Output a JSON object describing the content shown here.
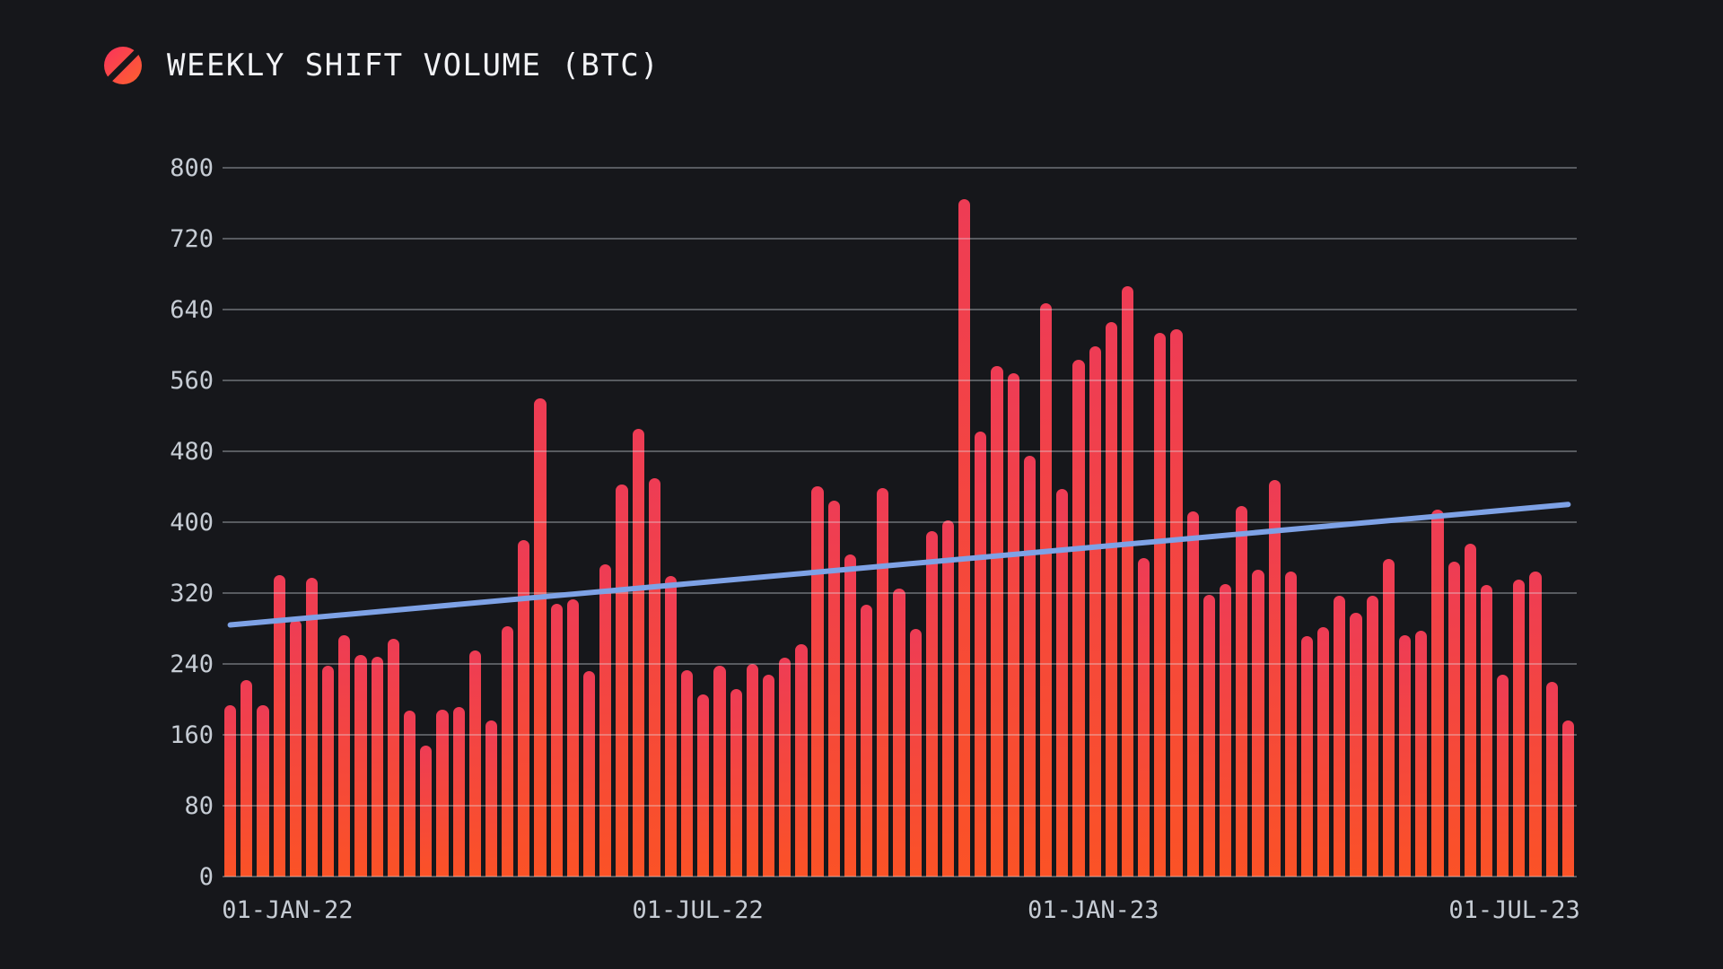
{
  "page": {
    "background": "#16171b"
  },
  "header": {
    "title": "WEEKLY SHIFT VOLUME (BTC)",
    "logo_name": "sideshift-slashed-circle-logo",
    "logo_color_from": "#fa3a55",
    "logo_color_to": "#fd5c33"
  },
  "chart_data": {
    "type": "bar",
    "title": "WEEKLY SHIFT VOLUME (BTC)",
    "unit": "BTC",
    "frequency": "weekly",
    "ylim": [
      0,
      800
    ],
    "y_ticks": [
      0,
      80,
      160,
      240,
      320,
      400,
      480,
      560,
      640,
      720,
      800
    ],
    "x_tick_labels": [
      "01-JAN-22",
      "01-JUL-22",
      "01-JAN-23",
      "01-JUL-23"
    ],
    "x_tick_positions": [
      0.048,
      0.351,
      0.643,
      0.954
    ],
    "grid": true,
    "legend_position": "none",
    "bar_color_top": "#ee3c55",
    "bar_color_bottom": "#fb5226",
    "background_color": "#16171b",
    "gridline_color": "rgba(226,231,238,0.33)",
    "tick_label_color": "#c6ccd4",
    "title_color": "#f2f3f6",
    "trendline": {
      "type": "linear",
      "start_value": 284,
      "end_value": 420,
      "color": "#7ea2e6",
      "stroke_width": 6
    },
    "values": [
      193,
      222,
      193,
      340,
      290,
      337,
      238,
      272,
      250,
      248,
      268,
      187,
      148,
      188,
      191,
      255,
      176,
      283,
      380,
      540,
      308,
      313,
      232,
      352,
      443,
      505,
      450,
      339,
      233,
      206,
      238,
      212,
      240,
      228,
      247,
      262,
      441,
      424,
      364,
      307,
      439,
      325,
      280,
      390,
      402,
      765,
      502,
      576,
      568,
      475,
      647,
      437,
      583,
      598,
      626,
      666,
      360,
      614,
      618,
      412,
      318,
      330,
      418,
      346,
      448,
      344,
      271,
      282,
      317,
      298,
      317,
      359,
      272,
      277,
      414,
      355,
      376,
      329,
      228,
      335,
      344,
      220,
      176
    ]
  }
}
